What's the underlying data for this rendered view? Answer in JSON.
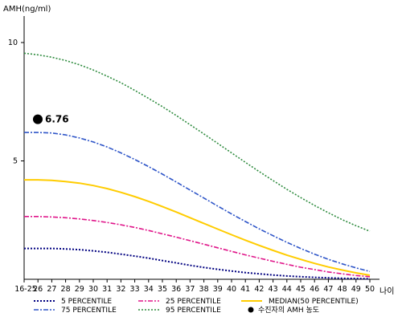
{
  "chart_data": {
    "type": "line",
    "title": "",
    "ylabel": "AMH(ng/ml)",
    "xlabel": "나이",
    "ylim": [
      0,
      10.8
    ],
    "y_ticks": [
      5,
      10
    ],
    "categories": [
      "16-25",
      "26",
      "27",
      "28",
      "29",
      "30",
      "31",
      "32",
      "33",
      "34",
      "35",
      "36",
      "37",
      "38",
      "39",
      "40",
      "41",
      "42",
      "43",
      "44",
      "45",
      "46",
      "47",
      "48",
      "49",
      "50"
    ],
    "series": [
      {
        "name": "5 PERCENTILE",
        "color": "#000080",
        "dash": "2,2",
        "width": 2,
        "values": [
          1.3,
          1.3,
          1.3,
          1.28,
          1.25,
          1.2,
          1.14,
          1.06,
          0.98,
          0.89,
          0.79,
          0.69,
          0.59,
          0.5,
          0.42,
          0.35,
          0.28,
          0.23,
          0.18,
          0.14,
          0.11,
          0.08,
          0.06,
          0.04,
          0.03,
          0.02
        ]
      },
      {
        "name": "25 PERCENTILE",
        "color": "#e0168a",
        "dash": "6,2,2,2",
        "width": 1.6,
        "values": [
          2.65,
          2.65,
          2.63,
          2.6,
          2.55,
          2.48,
          2.4,
          2.3,
          2.19,
          2.06,
          1.92,
          1.78,
          1.63,
          1.48,
          1.33,
          1.18,
          1.03,
          0.89,
          0.76,
          0.63,
          0.51,
          0.41,
          0.31,
          0.23,
          0.16,
          0.11
        ]
      },
      {
        "name": "MEDIAN(50 PERCENTILE)",
        "color": "#ffcc00",
        "dash": "",
        "width": 2,
        "values": [
          4.2,
          4.2,
          4.18,
          4.13,
          4.06,
          3.96,
          3.83,
          3.67,
          3.49,
          3.29,
          3.07,
          2.84,
          2.6,
          2.36,
          2.12,
          1.88,
          1.65,
          1.43,
          1.22,
          1.02,
          0.84,
          0.67,
          0.52,
          0.39,
          0.27,
          0.17
        ]
      },
      {
        "name": "75 PERCENTILE",
        "color": "#2e55c8",
        "dash": "6,2,2,2",
        "width": 1.6,
        "values": [
          6.2,
          6.2,
          6.18,
          6.1,
          5.97,
          5.8,
          5.59,
          5.34,
          5.06,
          4.76,
          4.44,
          4.11,
          3.77,
          3.43,
          3.09,
          2.76,
          2.44,
          2.13,
          1.84,
          1.56,
          1.3,
          1.06,
          0.84,
          0.65,
          0.48,
          0.33
        ]
      },
      {
        "name": "95 PERCENTILE",
        "color": "#2e8b3e",
        "dash": "2,2",
        "width": 1.6,
        "values": [
          9.55,
          9.48,
          9.38,
          9.24,
          9.06,
          8.84,
          8.58,
          8.3,
          7.98,
          7.64,
          7.29,
          6.92,
          6.53,
          6.14,
          5.74,
          5.34,
          4.94,
          4.55,
          4.17,
          3.8,
          3.45,
          3.12,
          2.81,
          2.52,
          2.26,
          2.03
        ]
      }
    ],
    "highlight_point": {
      "category": "16-25",
      "value": 6.76,
      "label": "6.76",
      "legend": "수진자의 AMH 농도",
      "color": "#000000"
    },
    "legend_position": "bottom",
    "grid": false
  }
}
